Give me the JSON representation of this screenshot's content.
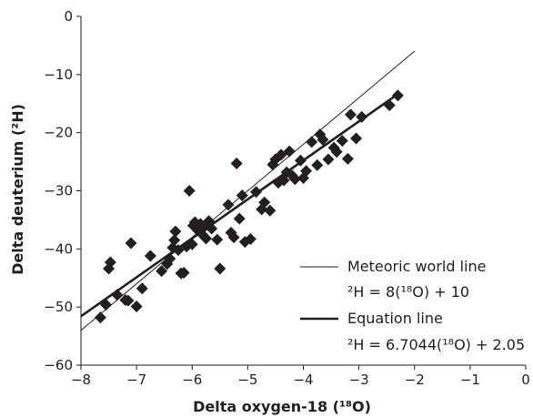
{
  "chart_data": {
    "type": "scatter",
    "title": "",
    "xlabel": "Delta oxygen-18 (¹⁸O)",
    "ylabel": "Delta deuterium (²H)",
    "xlim": [
      -8,
      0
    ],
    "ylim": [
      -60,
      0
    ],
    "xticks": [
      -8,
      -7,
      -6,
      -5,
      -4,
      -3,
      -2,
      -1,
      0
    ],
    "yticks": [
      0,
      -10,
      -20,
      -30,
      -40,
      -50,
      -60
    ],
    "xtick_labels": [
      "−8",
      "−7",
      "−6",
      "−5",
      "−4",
      "−3",
      "−2",
      "−1",
      "0"
    ],
    "ytick_labels": [
      "0",
      "−10",
      "−20",
      "−30",
      "−40",
      "−50",
      "−60"
    ],
    "grid": false,
    "legend_position": "bottom-right",
    "series": [
      {
        "marker": "diamond",
        "color": "#231f20",
        "points": [
          [
            -7.65,
            -51.8
          ],
          [
            -7.55,
            -49.6
          ],
          [
            -7.5,
            -43.4
          ],
          [
            -7.47,
            -42.3
          ],
          [
            -7.35,
            -47.9
          ],
          [
            -7.2,
            -48.8
          ],
          [
            -7.15,
            -48.9
          ],
          [
            -7.1,
            -39.0
          ],
          [
            -7.0,
            -49.9
          ],
          [
            -6.9,
            -46.8
          ],
          [
            -6.75,
            -41.2
          ],
          [
            -6.55,
            -43.8
          ],
          [
            -6.45,
            -42.6
          ],
          [
            -6.4,
            -41.7
          ],
          [
            -6.35,
            -39.8
          ],
          [
            -6.32,
            -38.5
          ],
          [
            -6.3,
            -37.0
          ],
          [
            -6.25,
            -40.2
          ],
          [
            -6.2,
            -44.2
          ],
          [
            -6.15,
            -44.1
          ],
          [
            -6.1,
            -39.6
          ],
          [
            -6.05,
            -30.0
          ],
          [
            -6.0,
            -39.2
          ],
          [
            -5.98,
            -36.0
          ],
          [
            -5.95,
            -35.4
          ],
          [
            -5.9,
            -36.8
          ],
          [
            -5.85,
            -35.7
          ],
          [
            -5.82,
            -37.5
          ],
          [
            -5.78,
            -36.2
          ],
          [
            -5.75,
            -38.2
          ],
          [
            -5.7,
            -35.2
          ],
          [
            -5.65,
            -36.5
          ],
          [
            -5.5,
            -43.4
          ],
          [
            -5.55,
            -38.4
          ],
          [
            -5.35,
            -32.4
          ],
          [
            -5.3,
            -37.2
          ],
          [
            -5.25,
            -38.0
          ],
          [
            -5.2,
            -25.3
          ],
          [
            -5.15,
            -34.8
          ],
          [
            -5.1,
            -30.8
          ],
          [
            -5.05,
            -38.8
          ],
          [
            -4.95,
            -38.3
          ],
          [
            -4.85,
            -30.2
          ],
          [
            -4.75,
            -33.2
          ],
          [
            -4.7,
            -32.0
          ],
          [
            -4.6,
            -33.4
          ],
          [
            -4.55,
            -25.5
          ],
          [
            -4.5,
            -24.6
          ],
          [
            -4.45,
            -28.6
          ],
          [
            -4.4,
            -23.8
          ],
          [
            -4.35,
            -28.2
          ],
          [
            -4.3,
            -26.8
          ],
          [
            -4.25,
            -23.2
          ],
          [
            -4.2,
            -27.4
          ],
          [
            -4.15,
            -28.0
          ],
          [
            -4.05,
            -24.8
          ],
          [
            -4.0,
            -27.8
          ],
          [
            -3.95,
            -26.6
          ],
          [
            -3.85,
            -21.6
          ],
          [
            -3.75,
            -25.6
          ],
          [
            -3.7,
            -20.3
          ],
          [
            -3.65,
            -21.2
          ],
          [
            -3.55,
            -24.6
          ],
          [
            -3.45,
            -22.6
          ],
          [
            -3.4,
            -23.3
          ],
          [
            -3.3,
            -21.4
          ],
          [
            -3.2,
            -24.5
          ],
          [
            -3.15,
            -16.9
          ],
          [
            -3.05,
            -21.0
          ],
          [
            -2.95,
            -17.3
          ],
          [
            -2.45,
            -15.3
          ],
          [
            -2.3,
            -13.6
          ]
        ]
      }
    ],
    "lines": [
      {
        "name": "Meteoric world line",
        "equation": "²H = 8(¹⁸O) + 10",
        "slope": 8,
        "intercept": 10,
        "x_range": [
          -8,
          -2
        ],
        "color": "#231f20",
        "width": 1
      },
      {
        "name": "Equation line",
        "equation": "²H = 6.7044(¹⁸O) + 2.05",
        "slope": 6.7044,
        "intercept": 2.05,
        "x_range": [
          -8,
          -2.3
        ],
        "color": "#231f20",
        "width": 2.6
      }
    ]
  }
}
